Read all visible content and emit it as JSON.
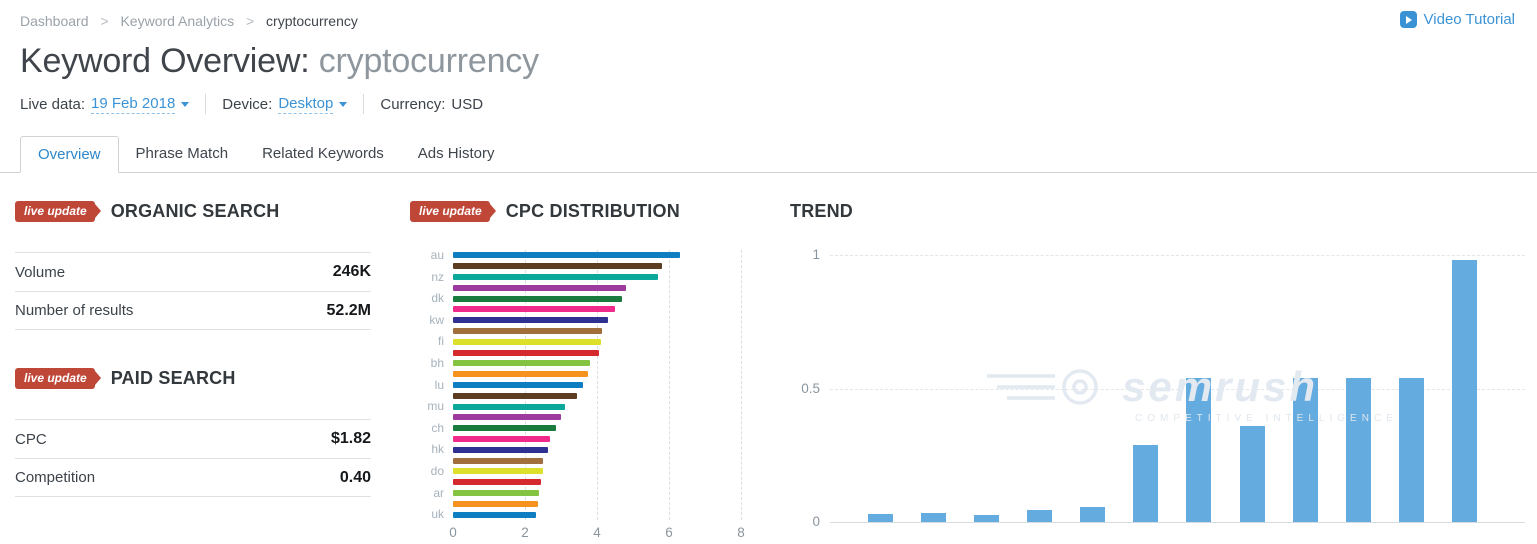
{
  "breadcrumb": {
    "items": [
      "Dashboard",
      "Keyword Analytics",
      "cryptocurrency"
    ],
    "separator": ">"
  },
  "header": {
    "video_tutorial": "Video Tutorial",
    "title_prefix": "Keyword Overview:",
    "title_keyword": "cryptocurrency"
  },
  "settings": {
    "live_data_label": "Live data:",
    "live_data_value": "19 Feb 2018",
    "device_label": "Device:",
    "device_value": "Desktop",
    "currency_label": "Currency:",
    "currency_value": "USD"
  },
  "tabs": [
    {
      "label": "Overview",
      "active": true
    },
    {
      "label": "Phrase Match",
      "active": false
    },
    {
      "label": "Related Keywords",
      "active": false
    },
    {
      "label": "Ads History",
      "active": false
    }
  ],
  "badges": {
    "live_update": "live update"
  },
  "organic_search": {
    "title": "ORGANIC SEARCH",
    "rows": [
      {
        "label": "Volume",
        "value": "246K"
      },
      {
        "label": "Number of results",
        "value": "52.2M"
      }
    ]
  },
  "paid_search": {
    "title": "PAID SEARCH",
    "rows": [
      {
        "label": "CPC",
        "value": "$1.82"
      },
      {
        "label": "Competition",
        "value": "0.40"
      }
    ]
  },
  "icons": {
    "play": "▶",
    "chevron_down": "▾"
  },
  "colors": {
    "accent_blue": "#3b93d5",
    "active_tab_blue": "#2e86c8",
    "badge_red": "#bf4738",
    "trend_bar_blue": "#64abdf"
  },
  "watermark": {
    "text": "semrush",
    "subtext": "COMPETITIVE INTELLIGENCE"
  },
  "chart_data": [
    {
      "name": "cpc_distribution",
      "type": "bar",
      "orientation": "horizontal",
      "title": "CPC DISTRIBUTION",
      "xlim": [
        0,
        8
      ],
      "xticks": [
        0,
        2,
        4,
        6,
        8
      ],
      "grid": "vertical-dashed",
      "bars": [
        {
          "label": "au",
          "value": 6.3,
          "color": "#0e7ec1"
        },
        {
          "label": "",
          "value": 5.8,
          "color": "#5c3d22"
        },
        {
          "label": "nz",
          "value": 5.7,
          "color": "#0aa79b"
        },
        {
          "label": "",
          "value": 4.8,
          "color": "#9c3a9e"
        },
        {
          "label": "dk",
          "value": 4.7,
          "color": "#197b3d"
        },
        {
          "label": "",
          "value": 4.5,
          "color": "#ef2a8a"
        },
        {
          "label": "kw",
          "value": 4.3,
          "color": "#2e3192"
        },
        {
          "label": "",
          "value": 4.15,
          "color": "#a16f3d"
        },
        {
          "label": "fi",
          "value": 4.1,
          "color": "#dde02a"
        },
        {
          "label": "",
          "value": 4.05,
          "color": "#d42a2e"
        },
        {
          "label": "bh",
          "value": 3.8,
          "color": "#84c341"
        },
        {
          "label": "",
          "value": 3.75,
          "color": "#f6921e"
        },
        {
          "label": "lu",
          "value": 3.6,
          "color": "#0e7ec1"
        },
        {
          "label": "",
          "value": 3.45,
          "color": "#5c3d22"
        },
        {
          "label": "mu",
          "value": 3.1,
          "color": "#0aa79b"
        },
        {
          "label": "",
          "value": 3.0,
          "color": "#9c3a9e"
        },
        {
          "label": "ch",
          "value": 2.85,
          "color": "#197b3d"
        },
        {
          "label": "",
          "value": 2.7,
          "color": "#ef2a8a"
        },
        {
          "label": "hk",
          "value": 2.65,
          "color": "#2e3192"
        },
        {
          "label": "",
          "value": 2.5,
          "color": "#a16f3d"
        },
        {
          "label": "do",
          "value": 2.5,
          "color": "#dde02a"
        },
        {
          "label": "",
          "value": 2.45,
          "color": "#d42a2e"
        },
        {
          "label": "ar",
          "value": 2.4,
          "color": "#84c341"
        },
        {
          "label": "",
          "value": 2.35,
          "color": "#f6921e"
        },
        {
          "label": "uk",
          "value": 2.3,
          "color": "#0e7ec1"
        }
      ]
    },
    {
      "name": "trend",
      "type": "bar",
      "title": "TREND",
      "ylim": [
        0,
        1
      ],
      "yticks": [
        0,
        0.5,
        1
      ],
      "grid": "horizontal-dashed",
      "bar_color": "#64abdf",
      "values": [
        0.03,
        0.035,
        0.025,
        0.045,
        0.055,
        0.29,
        0.54,
        0.36,
        0.54,
        0.54,
        0.54,
        0.98
      ]
    }
  ]
}
